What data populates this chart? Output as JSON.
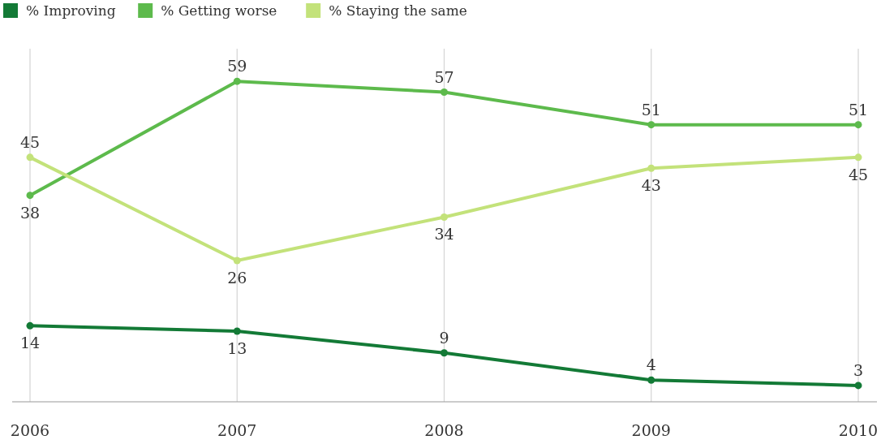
{
  "chart_data": {
    "type": "line",
    "categories": [
      "2006",
      "2007",
      "2008",
      "2009",
      "2010"
    ],
    "series": [
      {
        "name": "% Improving",
        "color": "#137a36",
        "values": [
          14,
          13,
          9,
          4,
          3
        ]
      },
      {
        "name": "% Getting worse",
        "color": "#5dba4c",
        "values": [
          38,
          59,
          57,
          51,
          51
        ]
      },
      {
        "name": "% Staying the same",
        "color": "#c3e27a",
        "values": [
          45,
          26,
          34,
          43,
          45
        ]
      }
    ],
    "ylim": [
      0,
      65
    ],
    "grid": "x",
    "legend": "top left",
    "marker": "circle",
    "line_style": "solid",
    "data_labels": true,
    "tick_labels": "x"
  }
}
